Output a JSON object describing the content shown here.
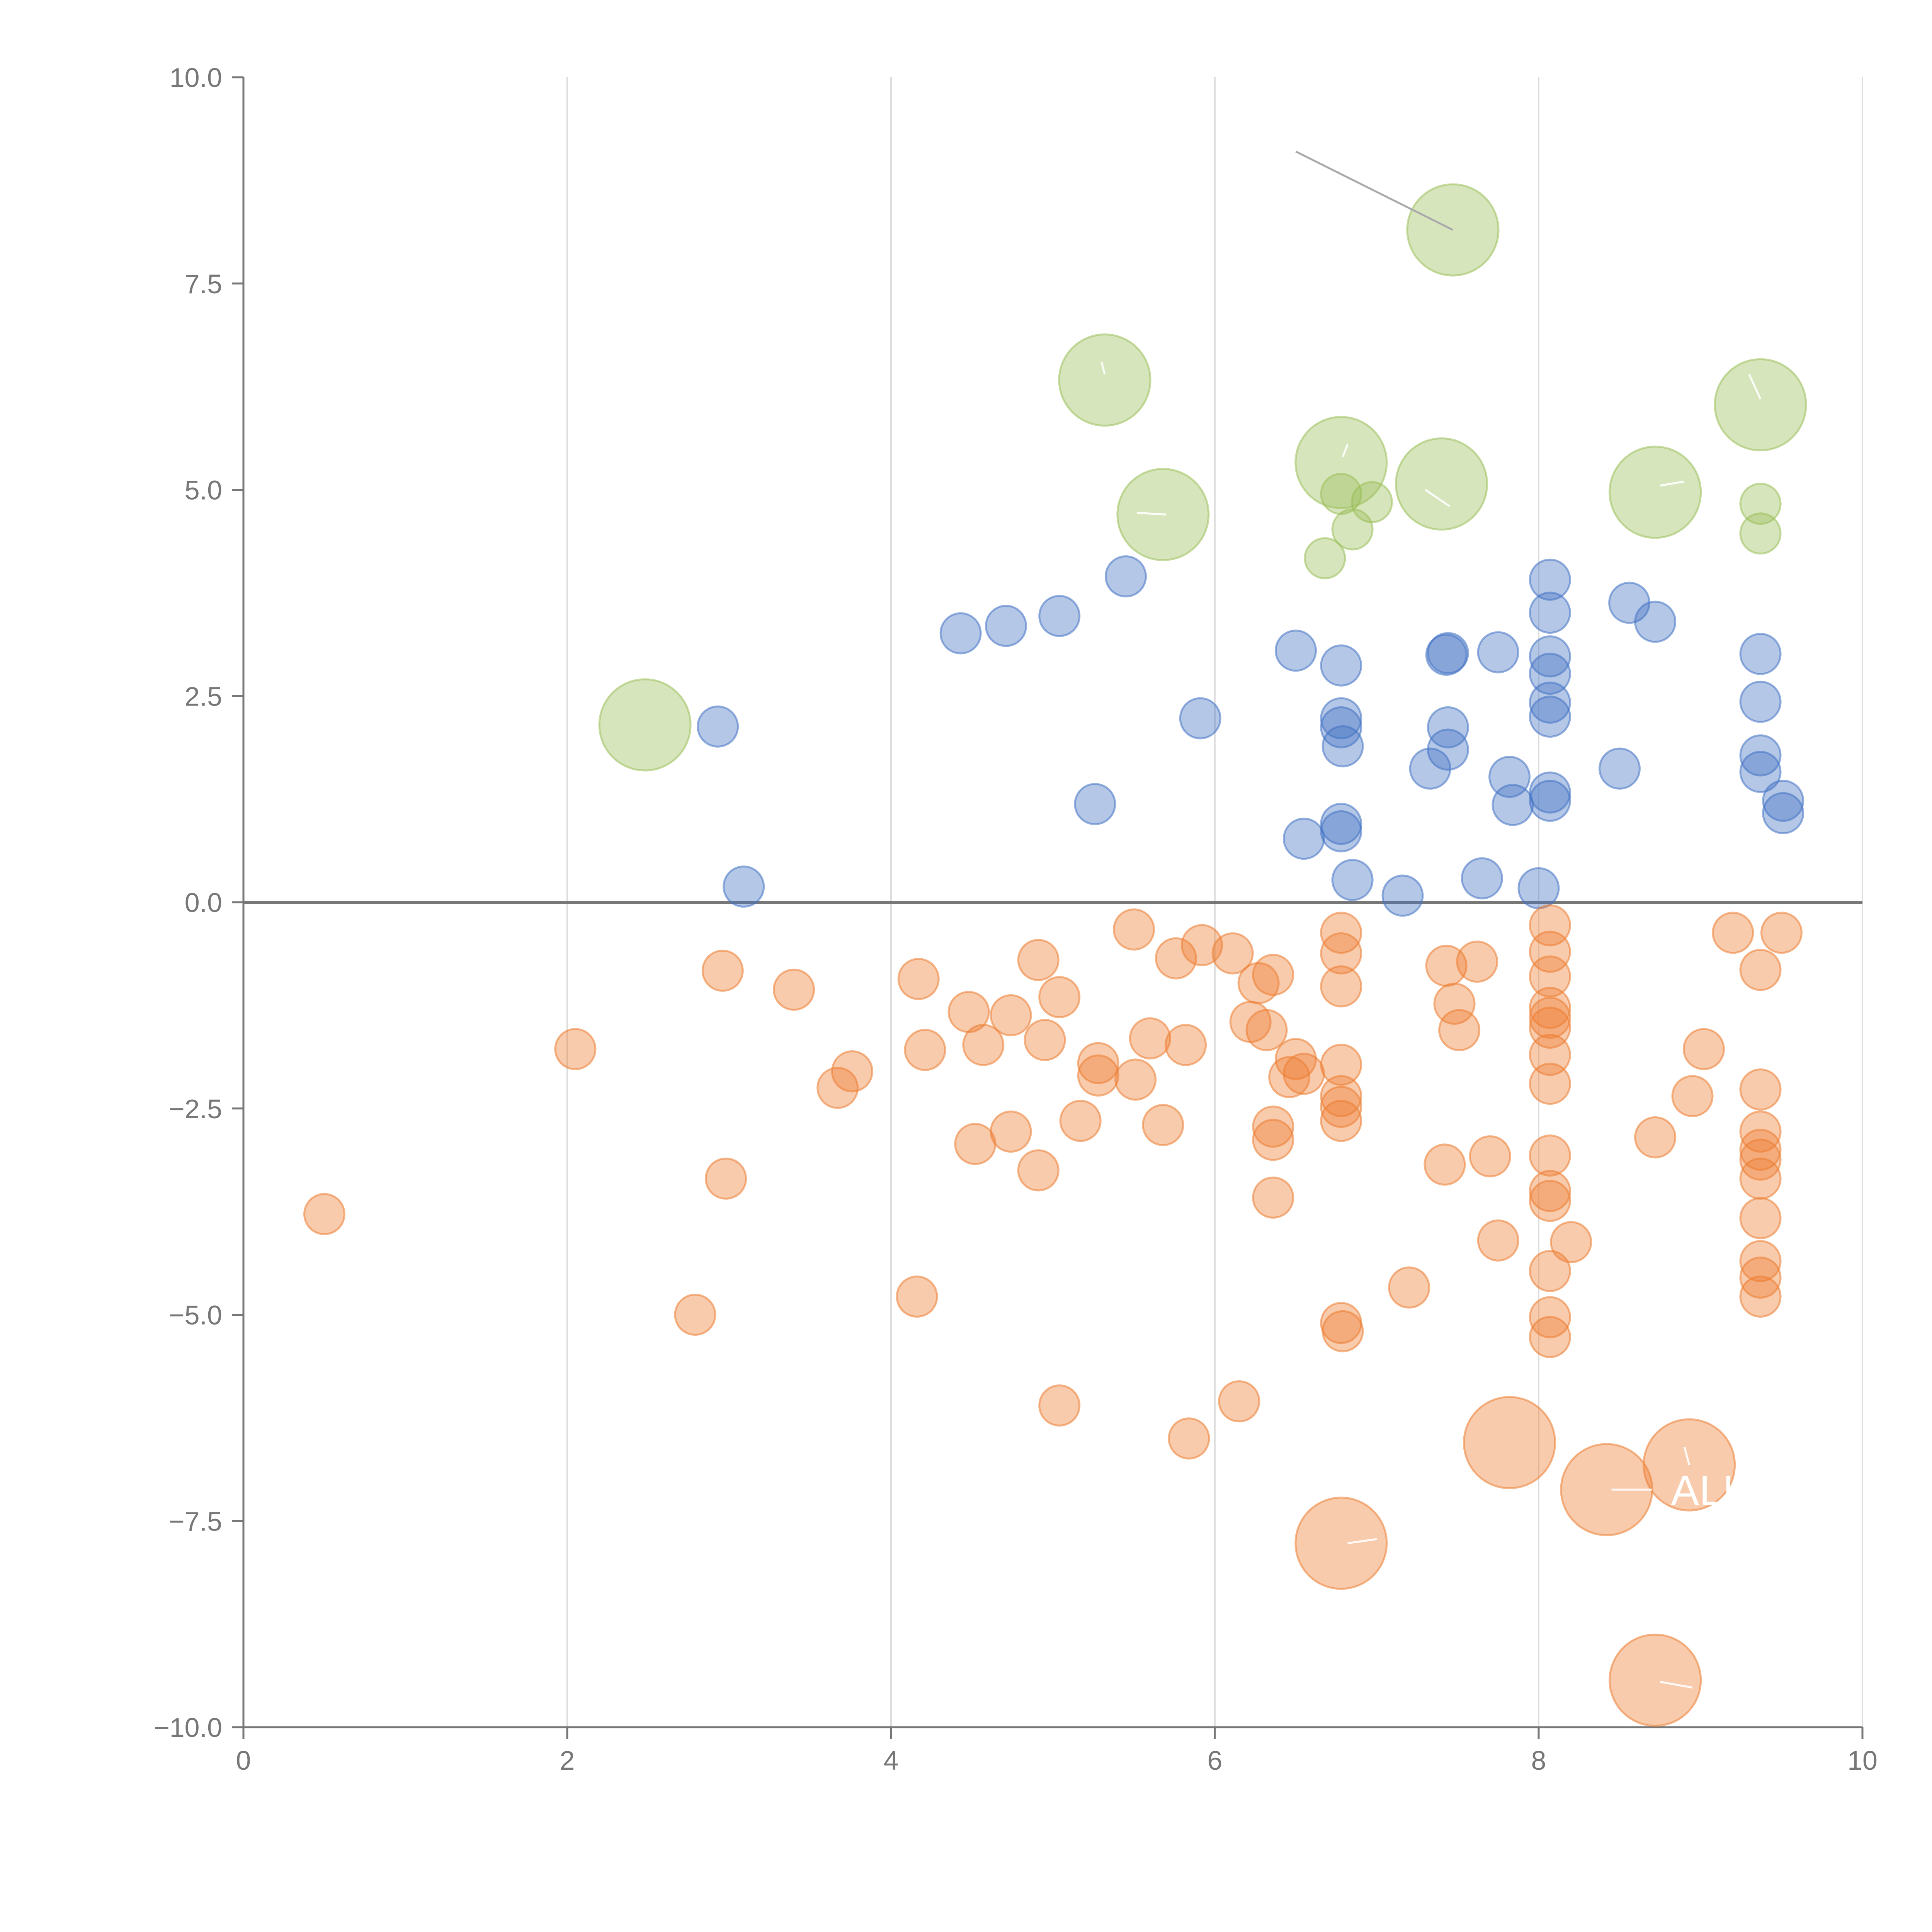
{
  "colors": {
    "positive": "#4472c4",
    "negative": "#ed7d31",
    "highlight": "#9bbf59",
    "axis": "#777777",
    "grid": "#dddddd",
    "leader": "#aaaaaa"
  },
  "chart_data": {
    "type": "scatter",
    "variant": "bubble",
    "title": "",
    "xlabel": "",
    "ylabel": "",
    "xlim": [
      0,
      10
    ],
    "ylim": [
      -10,
      10
    ],
    "x_ticks": [
      "0",
      "2",
      "4",
      "6",
      "8",
      "10"
    ],
    "y_ticks": [
      "10.0",
      "7.5",
      "5.0",
      "2.5",
      "0.0",
      "−2.5",
      "−5.0",
      "−7.5",
      "−10.0"
    ],
    "grid": {
      "vertical": true,
      "horizontal": false
    },
    "zero_line": true,
    "legend": "none",
    "series": [
      {
        "color_key": "positive",
        "size": 1,
        "points": [
          [
            2.93,
            2.13
          ],
          [
            3.09,
            0.19
          ],
          [
            4.43,
            3.26
          ],
          [
            4.71,
            3.35
          ],
          [
            5.04,
            3.47
          ],
          [
            5.45,
            3.95
          ],
          [
            5.26,
            1.19
          ],
          [
            5.91,
            2.23
          ],
          [
            6.5,
            3.05
          ],
          [
            6.55,
            0.77
          ],
          [
            6.78,
            2.87
          ],
          [
            6.78,
            2.23
          ],
          [
            6.78,
            2.12
          ],
          [
            6.79,
            1.89
          ],
          [
            6.78,
            0.95
          ],
          [
            6.78,
            0.86
          ],
          [
            6.85,
            0.27
          ],
          [
            7.16,
            0.08
          ],
          [
            7.33,
            1.62
          ],
          [
            7.43,
            3.0
          ],
          [
            7.44,
            3.02
          ],
          [
            7.44,
            2.12
          ],
          [
            7.44,
            1.85
          ],
          [
            7.65,
            0.29
          ],
          [
            7.75,
            3.03
          ],
          [
            7.82,
            1.52
          ],
          [
            7.84,
            1.18
          ],
          [
            8.0,
            0.17
          ],
          [
            8.07,
            3.91
          ],
          [
            8.07,
            3.51
          ],
          [
            8.07,
            2.98
          ],
          [
            8.07,
            2.77
          ],
          [
            8.07,
            2.42
          ],
          [
            8.07,
            2.25
          ],
          [
            8.07,
            1.33
          ],
          [
            8.07,
            1.23
          ],
          [
            8.5,
            1.62
          ],
          [
            8.56,
            3.63
          ],
          [
            8.72,
            3.4
          ],
          [
            9.37,
            3.01
          ],
          [
            9.37,
            2.43
          ],
          [
            9.37,
            1.78
          ],
          [
            9.37,
            1.58
          ],
          [
            9.51,
            1.23
          ],
          [
            9.51,
            1.08
          ]
        ]
      },
      {
        "color_key": "negative",
        "size": 1,
        "points": [
          [
            0.5,
            -3.78
          ],
          [
            2.05,
            -1.78
          ],
          [
            2.79,
            -5.0
          ],
          [
            2.96,
            -0.83
          ],
          [
            2.98,
            -3.35
          ],
          [
            3.4,
            -1.06
          ],
          [
            3.67,
            -2.25
          ],
          [
            3.76,
            -2.05
          ],
          [
            4.17,
            -0.93
          ],
          [
            4.16,
            -4.78
          ],
          [
            4.21,
            -1.79
          ],
          [
            4.48,
            -1.33
          ],
          [
            4.52,
            -2.93
          ],
          [
            4.57,
            -1.73
          ],
          [
            4.74,
            -1.37
          ],
          [
            4.74,
            -2.78
          ],
          [
            4.91,
            -0.7
          ],
          [
            4.91,
            -3.25
          ],
          [
            4.95,
            -1.67
          ],
          [
            5.04,
            -1.15
          ],
          [
            5.04,
            -6.1
          ],
          [
            5.17,
            -2.65
          ],
          [
            5.28,
            -1.95
          ],
          [
            5.28,
            -2.1
          ],
          [
            5.5,
            -0.33
          ],
          [
            5.51,
            -2.15
          ],
          [
            5.6,
            -1.65
          ],
          [
            5.68,
            -2.7
          ],
          [
            5.76,
            -0.68
          ],
          [
            5.82,
            -1.73
          ],
          [
            5.84,
            -6.5
          ],
          [
            5.92,
            -0.52
          ],
          [
            6.11,
            -0.62
          ],
          [
            6.15,
            -6.05
          ],
          [
            6.22,
            -1.45
          ],
          [
            6.27,
            -0.98
          ],
          [
            6.32,
            -1.55
          ],
          [
            6.36,
            -0.88
          ],
          [
            6.36,
            -2.72
          ],
          [
            6.36,
            -2.88
          ],
          [
            6.36,
            -3.58
          ],
          [
            6.46,
            -2.12
          ],
          [
            6.5,
            -1.9
          ],
          [
            6.55,
            -2.08
          ],
          [
            6.78,
            -0.37
          ],
          [
            6.78,
            -0.62
          ],
          [
            6.78,
            -1.02
          ],
          [
            6.78,
            -1.97
          ],
          [
            6.78,
            -2.35
          ],
          [
            6.78,
            -2.48
          ],
          [
            6.78,
            -2.65
          ],
          [
            6.78,
            -5.1
          ],
          [
            6.79,
            -5.2
          ],
          [
            7.2,
            -4.67
          ],
          [
            7.42,
            -3.18
          ],
          [
            7.43,
            -0.77
          ],
          [
            7.48,
            -1.23
          ],
          [
            7.51,
            -1.55
          ],
          [
            7.62,
            -0.72
          ],
          [
            7.7,
            -3.08
          ],
          [
            7.75,
            -4.1
          ],
          [
            8.07,
            -0.28
          ],
          [
            8.07,
            -0.6
          ],
          [
            8.07,
            -0.9
          ],
          [
            8.07,
            -1.28
          ],
          [
            8.07,
            -1.4
          ],
          [
            8.07,
            -1.52
          ],
          [
            8.07,
            -1.85
          ],
          [
            8.07,
            -2.2
          ],
          [
            8.07,
            -3.07
          ],
          [
            8.07,
            -3.5
          ],
          [
            8.07,
            -3.62
          ],
          [
            8.07,
            -4.47
          ],
          [
            8.07,
            -5.03
          ],
          [
            8.07,
            -5.27
          ],
          [
            8.2,
            -4.12
          ],
          [
            8.72,
            -2.85
          ],
          [
            8.95,
            -2.35
          ],
          [
            9.02,
            -1.78
          ],
          [
            9.2,
            -0.37
          ],
          [
            9.37,
            -0.82
          ],
          [
            9.37,
            -2.27
          ],
          [
            9.37,
            -2.78
          ],
          [
            9.37,
            -3.0
          ],
          [
            9.37,
            -3.12
          ],
          [
            9.37,
            -3.35
          ],
          [
            9.37,
            -3.83
          ],
          [
            9.37,
            -4.35
          ],
          [
            9.37,
            -4.55
          ],
          [
            9.37,
            -4.78
          ],
          [
            9.5,
            -0.37
          ]
        ]
      },
      {
        "color_key": "highlight",
        "size": 1,
        "points": [
          [
            6.68,
            4.17
          ],
          [
            6.78,
            4.95
          ],
          [
            6.85,
            4.52
          ],
          [
            6.97,
            4.85
          ],
          [
            9.37,
            4.83
          ],
          [
            9.37,
            4.47
          ]
        ]
      },
      {
        "color_key": "highlight",
        "size": 2,
        "points": [
          [
            2.48,
            2.15
          ],
          [
            5.32,
            6.33
          ],
          [
            5.68,
            4.7
          ],
          [
            6.78,
            5.33
          ],
          [
            7.4,
            5.07
          ],
          [
            7.47,
            8.15
          ],
          [
            8.72,
            4.97
          ],
          [
            9.37,
            6.03
          ]
        ]
      },
      {
        "color_key": "negative",
        "size": 2,
        "points": [
          [
            6.78,
            -7.77
          ],
          [
            7.82,
            -6.55
          ],
          [
            8.42,
            -7.12
          ],
          [
            8.93,
            -6.82
          ],
          [
            8.72,
            -9.43
          ]
        ]
      }
    ],
    "callouts": [
      {
        "from": [
          6.5,
          9.1
        ],
        "to": [
          7.47,
          8.15
        ]
      }
    ],
    "glyph_labels": [
      {
        "at": [
          9.05,
          -7.12
        ],
        "text": "ALL"
      }
    ]
  }
}
